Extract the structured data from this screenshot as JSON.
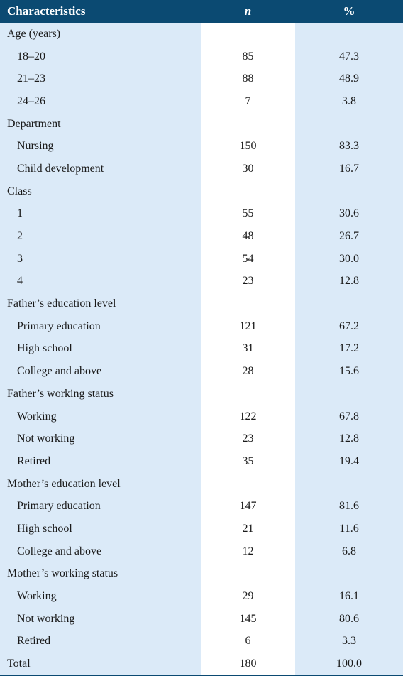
{
  "header": {
    "characteristics": "Characteristics",
    "n": "n",
    "pct": "%"
  },
  "rows": [
    {
      "label": "Age (years)",
      "n": "",
      "pct": "",
      "type": "group"
    },
    {
      "label": "18–20",
      "n": "85",
      "pct": "47.3",
      "type": "sub"
    },
    {
      "label": "21–23",
      "n": "88",
      "pct": "48.9",
      "type": "sub"
    },
    {
      "label": "24–26",
      "n": "7",
      "pct": "3.8",
      "type": "sub"
    },
    {
      "label": "Department",
      "n": "",
      "pct": "",
      "type": "group"
    },
    {
      "label": "Nursing",
      "n": "150",
      "pct": "83.3",
      "type": "sub"
    },
    {
      "label": "Child development",
      "n": "30",
      "pct": "16.7",
      "type": "sub"
    },
    {
      "label": "Class",
      "n": "",
      "pct": "",
      "type": "group"
    },
    {
      "label": "1",
      "n": "55",
      "pct": "30.6",
      "type": "sub"
    },
    {
      "label": "2",
      "n": "48",
      "pct": "26.7",
      "type": "sub"
    },
    {
      "label": "3",
      "n": "54",
      "pct": "30.0",
      "type": "sub"
    },
    {
      "label": "4",
      "n": "23",
      "pct": "12.8",
      "type": "sub"
    },
    {
      "label": "Father’s education level",
      "n": "",
      "pct": "",
      "type": "group"
    },
    {
      "label": "Primary education",
      "n": "121",
      "pct": "67.2",
      "type": "sub"
    },
    {
      "label": "High school",
      "n": "31",
      "pct": "17.2",
      "type": "sub"
    },
    {
      "label": "College and above",
      "n": "28",
      "pct": "15.6",
      "type": "sub"
    },
    {
      "label": "Father’s working status",
      "n": "",
      "pct": "",
      "type": "group"
    },
    {
      "label": "Working",
      "n": "122",
      "pct": "67.8",
      "type": "sub"
    },
    {
      "label": "Not working",
      "n": "23",
      "pct": "12.8",
      "type": "sub"
    },
    {
      "label": "Retired",
      "n": "35",
      "pct": "19.4",
      "type": "sub"
    },
    {
      "label": "Mother’s education level",
      "n": "",
      "pct": "",
      "type": "group"
    },
    {
      "label": "Primary education",
      "n": "147",
      "pct": "81.6",
      "type": "sub"
    },
    {
      "label": "High school",
      "n": "21",
      "pct": "11.6",
      "type": "sub"
    },
    {
      "label": "College and above",
      "n": "12",
      "pct": "6.8",
      "type": "sub"
    },
    {
      "label": "Mother’s working status",
      "n": "",
      "pct": "",
      "type": "group"
    },
    {
      "label": "Working",
      "n": "29",
      "pct": "16.1",
      "type": "sub"
    },
    {
      "label": "Not working",
      "n": "145",
      "pct": "80.6",
      "type": "sub"
    },
    {
      "label": "Retired",
      "n": "6",
      "pct": "3.3",
      "type": "sub"
    },
    {
      "label": "Total",
      "n": "180",
      "pct": "100.0",
      "type": "total"
    }
  ]
}
